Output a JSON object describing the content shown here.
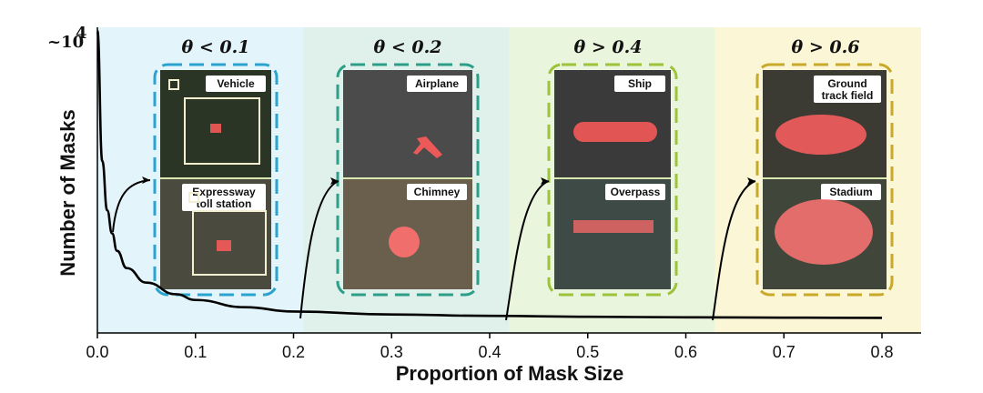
{
  "chart_data": {
    "type": "line",
    "xlabel": "Proportion of Mask Size",
    "ylabel": "Number of Masks",
    "y_top_label": "~10",
    "y_top_label_exp": "4",
    "xlim": [
      0.0,
      0.8
    ],
    "xticks": [
      "0.0",
      "0.1",
      "0.2",
      "0.3",
      "0.4",
      "0.5",
      "0.6",
      "0.7",
      "0.8"
    ],
    "series": [
      {
        "x": [
          0.0,
          0.005,
          0.01,
          0.015,
          0.02,
          0.03,
          0.05,
          0.08,
          0.1,
          0.15,
          0.2,
          0.3,
          0.4,
          0.5,
          0.6,
          0.7,
          0.8
        ],
        "y": [
          1.0,
          0.55,
          0.38,
          0.3,
          0.24,
          0.18,
          0.13,
          0.09,
          0.07,
          0.045,
          0.03,
          0.02,
          0.015,
          0.012,
          0.01,
          0.009,
          0.008
        ]
      }
    ],
    "bands": [
      {
        "x0": 0.0,
        "x1": 0.21,
        "color": "#e4f4fb",
        "title": "θ < 0.1",
        "frame_color": "#2aa3cf",
        "tags": [
          "Vehicle",
          "Expressway toll station"
        ]
      },
      {
        "x0": 0.21,
        "x1": 0.42,
        "color": "#dff1ea",
        "title": "θ < 0.2",
        "frame_color": "#2e9e88",
        "tags": [
          "Airplane",
          "Chimney"
        ]
      },
      {
        "x0": 0.42,
        "x1": 0.63,
        "color": "#eaf5dd",
        "title": "θ > 0.4",
        "frame_color": "#9cc33a",
        "tags": [
          "Ship",
          "Overpass"
        ]
      },
      {
        "x0": 0.63,
        "x1": 0.8,
        "color": "#fbf6d6",
        "title": "θ > 0.6",
        "frame_color": "#c9a92a",
        "tags": [
          "Ground track field",
          "Stadium"
        ]
      }
    ],
    "grid": false,
    "legend": "none"
  }
}
